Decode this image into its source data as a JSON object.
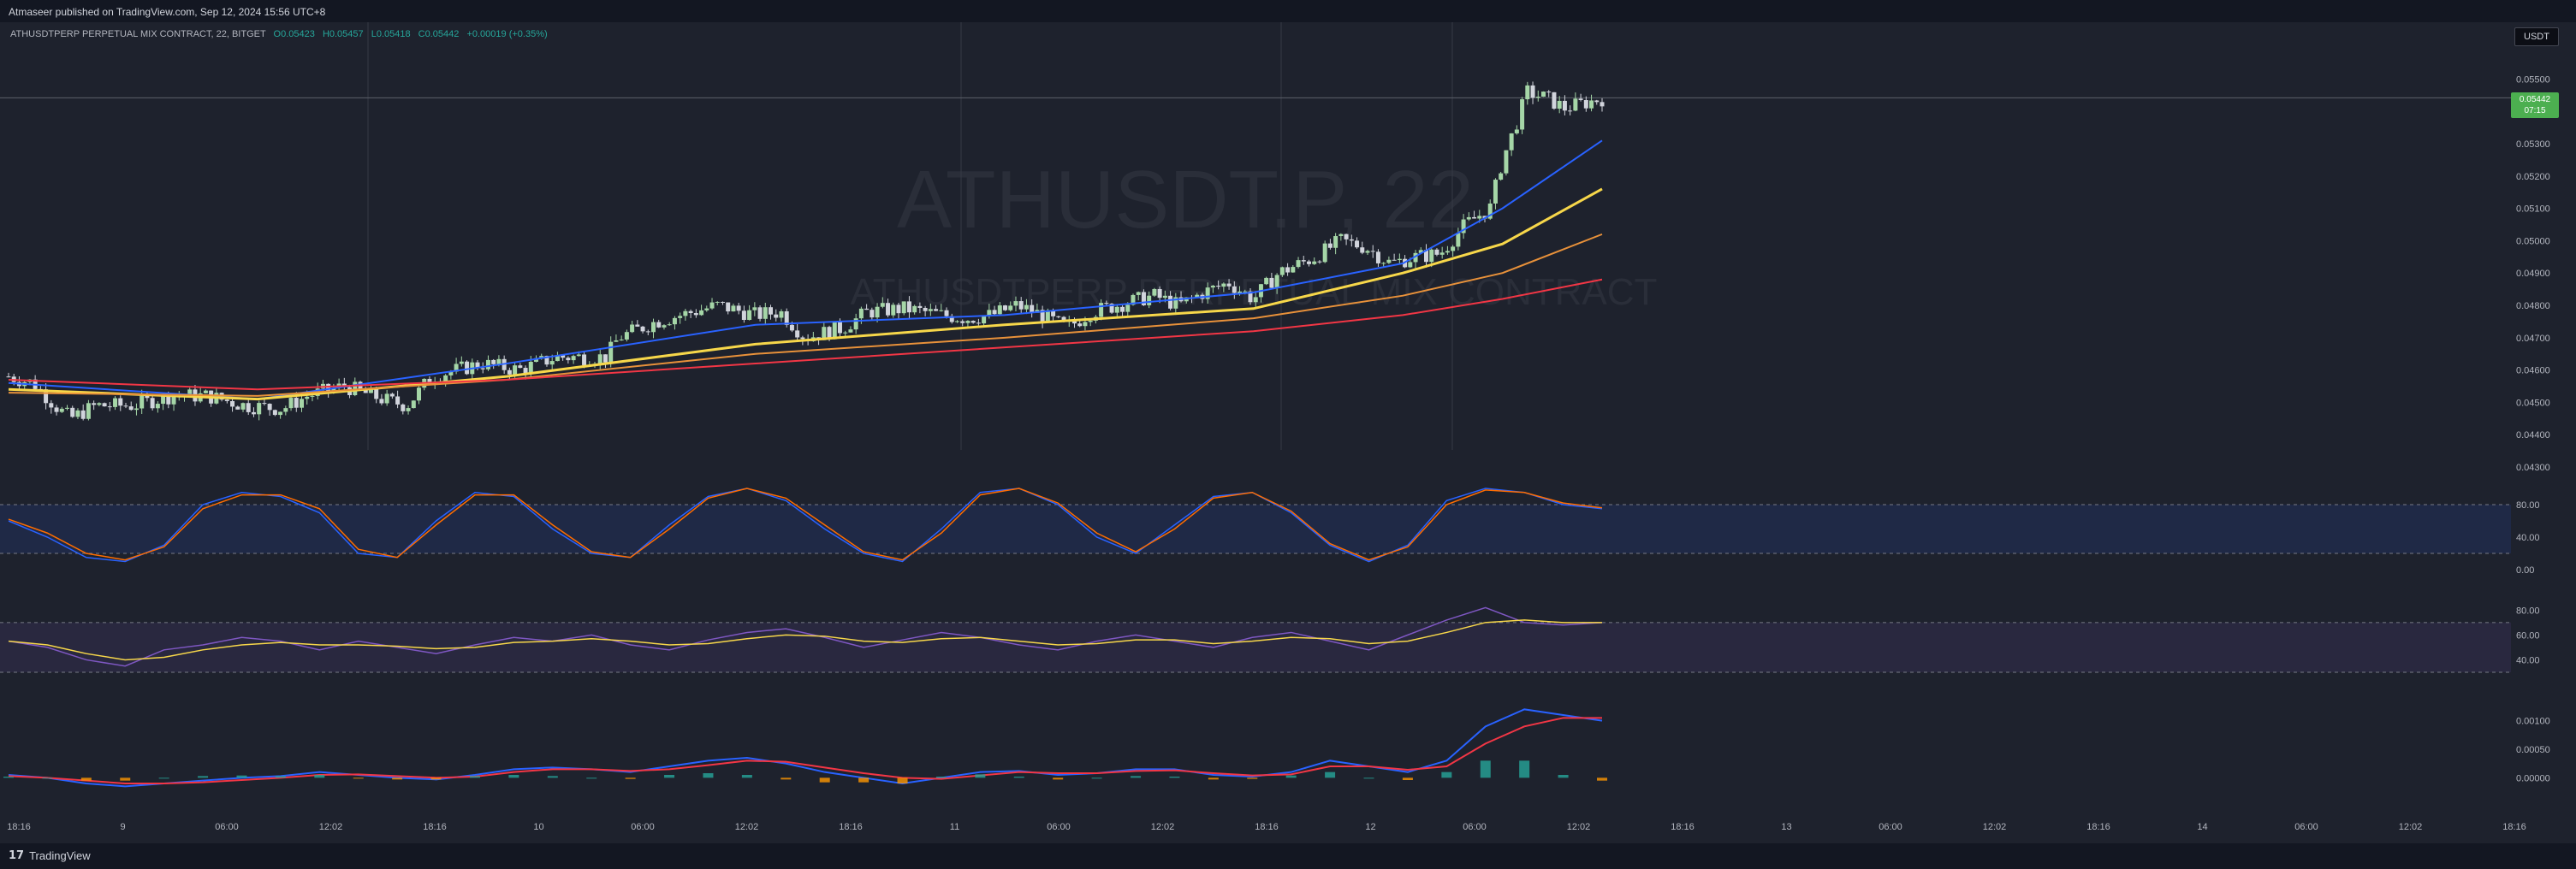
{
  "header": {
    "published_text": "Atmaseer published on TradingView.com, Sep 12, 2024 15:56 UTC+8"
  },
  "legend": {
    "symbol": "ATHUSDTPERP PERPETUAL MIX CONTRACT, 22, BITGET",
    "open": "O0.05423",
    "high": "H0.05457",
    "low": "L0.05418",
    "close": "C0.05442",
    "change": "+0.00019 (+0.35%)"
  },
  "watermark": {
    "ticker": "ATHUSDT.P, 22",
    "name": "ATHUSDTPERP PERPETUAL MIX CONTRACT"
  },
  "price_scale": {
    "currency": "USDT",
    "last_price": "0.05442",
    "countdown": "07:15"
  },
  "footer": {
    "brand": "TradingView"
  },
  "colors": {
    "bg": "#1e222d",
    "up": "#a5d6a7",
    "down": "#d1d4dc",
    "ema_fast": "#2962ff",
    "ema_mid": "#f7d74a",
    "ema_slow": "#e8913a",
    "ema_long": "#f23645",
    "stoch_k": "#2962ff",
    "stoch_d": "#ff6d00",
    "rsi": "#7e57c2",
    "rsi_ma": "#f7d74a",
    "macd": "#2962ff",
    "signal": "#f23645"
  },
  "chart_data": [
    {
      "type": "candlestick",
      "panel": "price",
      "ylim": [
        0.043,
        0.0557
      ],
      "y_ticks": [
        "0.05500",
        "0.05400",
        "0.05300",
        "0.05200",
        "0.05100",
        "0.05000",
        "0.04900",
        "0.04800",
        "0.04700",
        "0.04600",
        "0.04500",
        "0.04400",
        "0.04300"
      ],
      "x_ticks": [
        "18:16",
        "9",
        "06:00",
        "12:02",
        "18:16",
        "10",
        "06:00",
        "12:02",
        "18:16",
        "11",
        "06:00",
        "12:02",
        "18:16",
        "12",
        "06:00",
        "12:02",
        "18:16",
        "13",
        "06:00",
        "12:02",
        "18:16",
        "14",
        "06:00",
        "12:02",
        "18:16"
      ],
      "close_path": [
        [
          0,
          0.0458
        ],
        [
          10,
          0.0456
        ],
        [
          20,
          0.0448
        ],
        [
          25,
          0.0445
        ],
        [
          35,
          0.0449
        ],
        [
          50,
          0.0449
        ],
        [
          65,
          0.0452
        ],
        [
          80,
          0.0452
        ],
        [
          95,
          0.0449
        ],
        [
          110,
          0.0448
        ],
        [
          120,
          0.0452
        ],
        [
          135,
          0.0455
        ],
        [
          150,
          0.0451
        ],
        [
          160,
          0.0449
        ],
        [
          170,
          0.0458
        ],
        [
          190,
          0.0462
        ],
        [
          205,
          0.046
        ],
        [
          220,
          0.0464
        ],
        [
          240,
          0.0464
        ],
        [
          245,
          0.047
        ],
        [
          260,
          0.0475
        ],
        [
          275,
          0.0478
        ],
        [
          285,
          0.048
        ],
        [
          300,
          0.0477
        ],
        [
          310,
          0.0478
        ],
        [
          320,
          0.047
        ],
        [
          335,
          0.0473
        ],
        [
          345,
          0.0478
        ],
        [
          360,
          0.0479
        ],
        [
          375,
          0.0477
        ],
        [
          385,
          0.0476
        ],
        [
          395,
          0.0477
        ],
        [
          405,
          0.048
        ],
        [
          415,
          0.0477
        ],
        [
          425,
          0.0473
        ],
        [
          435,
          0.0478
        ],
        [
          450,
          0.0481
        ],
        [
          460,
          0.0483
        ],
        [
          470,
          0.048
        ],
        [
          480,
          0.0484
        ],
        [
          490,
          0.0487
        ],
        [
          500,
          0.0482
        ],
        [
          510,
          0.049
        ],
        [
          525,
          0.0495
        ],
        [
          535,
          0.05
        ],
        [
          545,
          0.0498
        ],
        [
          555,
          0.0493
        ],
        [
          565,
          0.0495
        ],
        [
          575,
          0.0496
        ],
        [
          585,
          0.0505
        ],
        [
          595,
          0.051
        ],
        [
          600,
          0.0525
        ],
        [
          605,
          0.0535
        ],
        [
          610,
          0.0546
        ],
        [
          618,
          0.0544
        ],
        [
          625,
          0.0541
        ],
        [
          635,
          0.0543
        ],
        [
          640,
          0.0544
        ]
      ],
      "overlays": [
        {
          "name": "EMA fast",
          "color": "#2962ff",
          "values": [
            [
              0,
              0.0456
            ],
            [
              100,
              0.0451
            ],
            [
              200,
              0.0462
            ],
            [
              300,
              0.0474
            ],
            [
              400,
              0.0477
            ],
            [
              500,
              0.0484
            ],
            [
              560,
              0.0493
            ],
            [
              600,
              0.051
            ],
            [
              640,
              0.0531
            ]
          ]
        },
        {
          "name": "EMA mid",
          "color": "#f7d74a",
          "values": [
            [
              0,
              0.0454
            ],
            [
              100,
              0.0451
            ],
            [
              200,
              0.0458
            ],
            [
              300,
              0.0468
            ],
            [
              400,
              0.0474
            ],
            [
              500,
              0.0479
            ],
            [
              560,
              0.049
            ],
            [
              600,
              0.0499
            ],
            [
              640,
              0.0516
            ]
          ]
        },
        {
          "name": "EMA slow",
          "color": "#e8913a",
          "values": [
            [
              0,
              0.0453
            ],
            [
              100,
              0.0452
            ],
            [
              200,
              0.0457
            ],
            [
              300,
              0.0465
            ],
            [
              400,
              0.047
            ],
            [
              500,
              0.0476
            ],
            [
              560,
              0.0483
            ],
            [
              600,
              0.049
            ],
            [
              640,
              0.0502
            ]
          ]
        },
        {
          "name": "EMA long",
          "color": "#f23645",
          "values": [
            [
              0,
              0.0457
            ],
            [
              100,
              0.0454
            ],
            [
              200,
              0.0457
            ],
            [
              300,
              0.0462
            ],
            [
              400,
              0.0467
            ],
            [
              500,
              0.0472
            ],
            [
              560,
              0.0477
            ],
            [
              600,
              0.0482
            ],
            [
              640,
              0.0488
            ]
          ]
        }
      ]
    },
    {
      "type": "line",
      "panel": "stoch_rsi",
      "y_ticks": [
        "80.00",
        "40.00",
        "0.00"
      ],
      "bands": [
        80,
        20
      ],
      "series": [
        {
          "color": "#2962ff",
          "values": [
            60,
            40,
            15,
            10,
            30,
            80,
            95,
            90,
            70,
            20,
            15,
            60,
            95,
            90,
            50,
            20,
            15,
            55,
            90,
            100,
            85,
            50,
            20,
            10,
            50,
            95,
            100,
            80,
            40,
            20,
            55,
            90,
            95,
            70,
            30,
            10,
            30,
            85,
            100,
            95,
            80,
            75
          ]
        },
        {
          "color": "#ff6d00",
          "values": [
            62,
            45,
            20,
            12,
            28,
            75,
            92,
            92,
            75,
            25,
            15,
            55,
            92,
            92,
            55,
            22,
            15,
            50,
            88,
            100,
            88,
            55,
            22,
            12,
            45,
            92,
            100,
            82,
            45,
            22,
            50,
            88,
            95,
            72,
            32,
            12,
            28,
            80,
            98,
            95,
            82,
            76
          ]
        }
      ]
    },
    {
      "type": "line",
      "panel": "rsi",
      "y_ticks": [
        "80.00",
        "60.00",
        "40.00"
      ],
      "bands": [
        70,
        30
      ],
      "series": [
        {
          "color": "#7e57c2",
          "values": [
            55,
            50,
            40,
            35,
            48,
            52,
            58,
            55,
            48,
            55,
            50,
            45,
            52,
            58,
            55,
            60,
            52,
            48,
            56,
            62,
            65,
            58,
            50,
            56,
            62,
            58,
            52,
            48,
            55,
            60,
            55,
            50,
            58,
            62,
            55,
            48,
            60,
            72,
            82,
            70,
            68,
            70
          ]
        },
        {
          "color": "#f7d74a",
          "values": [
            55,
            52,
            45,
            40,
            42,
            48,
            52,
            54,
            52,
            52,
            51,
            49,
            50,
            54,
            55,
            57,
            55,
            52,
            53,
            57,
            60,
            59,
            55,
            54,
            57,
            58,
            55,
            52,
            53,
            56,
            56,
            53,
            55,
            58,
            57,
            53,
            55,
            62,
            70,
            72,
            70,
            70
          ]
        }
      ]
    },
    {
      "type": "histogram",
      "panel": "macd",
      "y_ticks": [
        "0.00100",
        "0.00050",
        "0.00000"
      ],
      "series": [
        {
          "name": "MACD",
          "color": "#2962ff",
          "values": [
            5e-05,
            0.0,
            -0.0001,
            -0.00015,
            -0.0001,
            -5e-05,
            0.0,
            3e-05,
            0.0001,
            5e-05,
            0.0,
            -3e-05,
            5e-05,
            0.00015,
            0.00018,
            0.00015,
            0.0001,
            0.0002,
            0.0003,
            0.00035,
            0.00025,
            0.0001,
            0.0,
            -0.0001,
            0.0,
            0.0001,
            0.00012,
            5e-05,
            8e-05,
            0.00015,
            0.00015,
            5e-05,
            2e-05,
            0.0001,
            0.0003,
            0.0002,
            0.0001,
            0.0003,
            0.0009,
            0.0012,
            0.0011,
            0.001
          ]
        },
        {
          "name": "Signal",
          "color": "#f23645",
          "values": [
            3e-05,
            0.0,
            -5e-05,
            -0.0001,
            -0.0001,
            -8e-05,
            -4e-05,
            0.0,
            5e-05,
            6e-05,
            3e-05,
            0.0,
            2e-05,
            0.0001,
            0.00015,
            0.00015,
            0.00012,
            0.00015,
            0.00022,
            0.0003,
            0.00028,
            0.00018,
            8e-05,
            0.0,
            -2e-05,
            4e-05,
            0.0001,
            8e-05,
            8e-05,
            0.00012,
            0.00013,
            8e-05,
            4e-05,
            6e-05,
            0.0002,
            0.0002,
            0.00014,
            0.0002,
            0.0006,
            0.0009,
            0.00105,
            0.00105
          ]
        }
      ]
    }
  ]
}
